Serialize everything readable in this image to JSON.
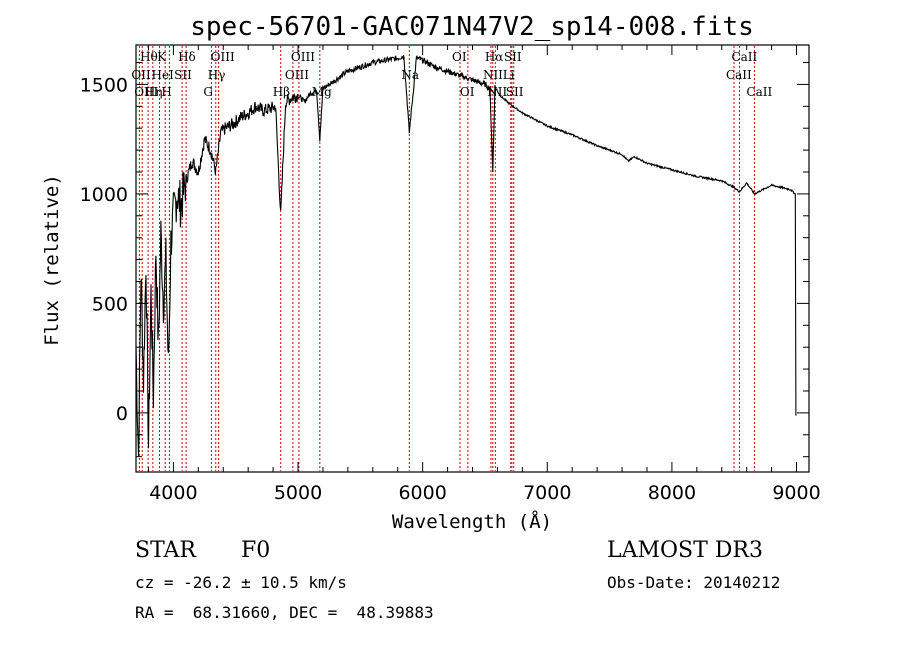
{
  "chart_data": {
    "type": "line",
    "title": "spec-56701-GAC071N47V2_sp14-008.fits",
    "xlabel": "Wavelength (Å)",
    "ylabel": "Flux (relative)",
    "xlim": [
      3700,
      9100
    ],
    "ylim": [
      -270,
      1680
    ],
    "x_ticks": [
      4000,
      5000,
      6000,
      7000,
      8000,
      9000
    ],
    "y_ticks": [
      0,
      500,
      1000,
      1500
    ],
    "series": [
      {
        "name": "flux",
        "x": [
          3700,
          3720,
          3740,
          3760,
          3780,
          3800,
          3820,
          3840,
          3860,
          3880,
          3900,
          3920,
          3940,
          3960,
          3980,
          4000,
          4030,
          4060,
          4100,
          4150,
          4200,
          4250,
          4300,
          4340,
          4380,
          4420,
          4480,
          4540,
          4600,
          4660,
          4720,
          4780,
          4820,
          4861,
          4900,
          4950,
          5000,
          5050,
          5100,
          5150,
          5175,
          5200,
          5300,
          5400,
          5500,
          5600,
          5700,
          5800,
          5850,
          5893,
          5950,
          6000,
          6100,
          6200,
          6300,
          6400,
          6500,
          6540,
          6563,
          6580,
          6620,
          6700,
          6800,
          6900,
          7000,
          7200,
          7400,
          7600,
          7650,
          7700,
          7800,
          8000,
          8200,
          8400,
          8498,
          8542,
          8600,
          8662,
          8800,
          8950,
          8990,
          8995,
          9000
        ],
        "y": [
          300,
          -200,
          650,
          150,
          700,
          -150,
          550,
          80,
          750,
          300,
          820,
          500,
          700,
          200,
          780,
          900,
          1000,
          950,
          1060,
          1150,
          1100,
          1250,
          1200,
          1100,
          1280,
          1300,
          1320,
          1350,
          1370,
          1400,
          1380,
          1390,
          1400,
          900,
          1420,
          1440,
          1450,
          1420,
          1460,
          1470,
          1250,
          1480,
          1520,
          1560,
          1580,
          1600,
          1610,
          1620,
          1630,
          1280,
          1620,
          1610,
          1580,
          1560,
          1540,
          1520,
          1500,
          1480,
          1100,
          1490,
          1450,
          1410,
          1370,
          1340,
          1310,
          1270,
          1220,
          1180,
          1150,
          1170,
          1140,
          1110,
          1080,
          1060,
          1030,
          1010,
          1050,
          1000,
          1040,
          1020,
          1000,
          -10,
          -10
        ]
      }
    ],
    "line_markers": [
      {
        "label": "Hθ",
        "x": 3797,
        "row": 1
      },
      {
        "label": "OII",
        "x": 3727,
        "row": 2
      },
      {
        "label": "OIII",
        "x": 3750,
        "row": 3
      },
      {
        "label": "HeI",
        "x": 3889,
        "row": 2
      },
      {
        "label": "K",
        "x": 3934,
        "row": 1
      },
      {
        "label": "Hη",
        "x": 3835,
        "row": 3
      },
      {
        "label": "H",
        "x": 3968,
        "row": 3
      },
      {
        "label": "SII",
        "x": 4070,
        "row": 2
      },
      {
        "label": "Hδ",
        "x": 4102,
        "row": 1
      },
      {
        "label": "OIII",
        "x": 4363,
        "row": 1
      },
      {
        "label": "Hγ",
        "x": 4340,
        "row": 2
      },
      {
        "label": "G",
        "x": 4305,
        "row": 3
      },
      {
        "label": "Hβ",
        "x": 4861,
        "row": 3
      },
      {
        "label": "OIII",
        "x": 5007,
        "row": 1
      },
      {
        "label": "OIII",
        "x": 4959,
        "row": 2
      },
      {
        "label": "Mg",
        "x": 5175,
        "row": 3
      },
      {
        "label": "Na",
        "x": 5893,
        "row": 2
      },
      {
        "label": "OI",
        "x": 6300,
        "row": 1
      },
      {
        "label": "OI",
        "x": 6363,
        "row": 3
      },
      {
        "label": "Hα",
        "x": 6563,
        "row": 1
      },
      {
        "label": "NII",
        "x": 6548,
        "row": 2
      },
      {
        "label": "NII",
        "x": 6583,
        "row": 3
      },
      {
        "label": "SII",
        "x": 6716,
        "row": 1
      },
      {
        "label": "Li",
        "x": 6707,
        "row": 2
      },
      {
        "label": "SII",
        "x": 6731,
        "row": 3
      },
      {
        "label": "CaII",
        "x": 8542,
        "row": 1
      },
      {
        "label": "CaII",
        "x": 8498,
        "row": 2
      },
      {
        "label": "CaII",
        "x": 8662,
        "row": 3
      }
    ]
  },
  "info": {
    "class": "STAR",
    "subclass": "F0",
    "survey": "LAMOST DR3",
    "redshift": "cz = -26.2 ± 10.5 km/s",
    "obs_date": "Obs-Date: 20140212",
    "coords": "RA =  68.31660, DEC =  48.39883"
  },
  "colors": {
    "axis": "#000000",
    "line_marker": "#cc0000",
    "spectrum": "#000000"
  }
}
